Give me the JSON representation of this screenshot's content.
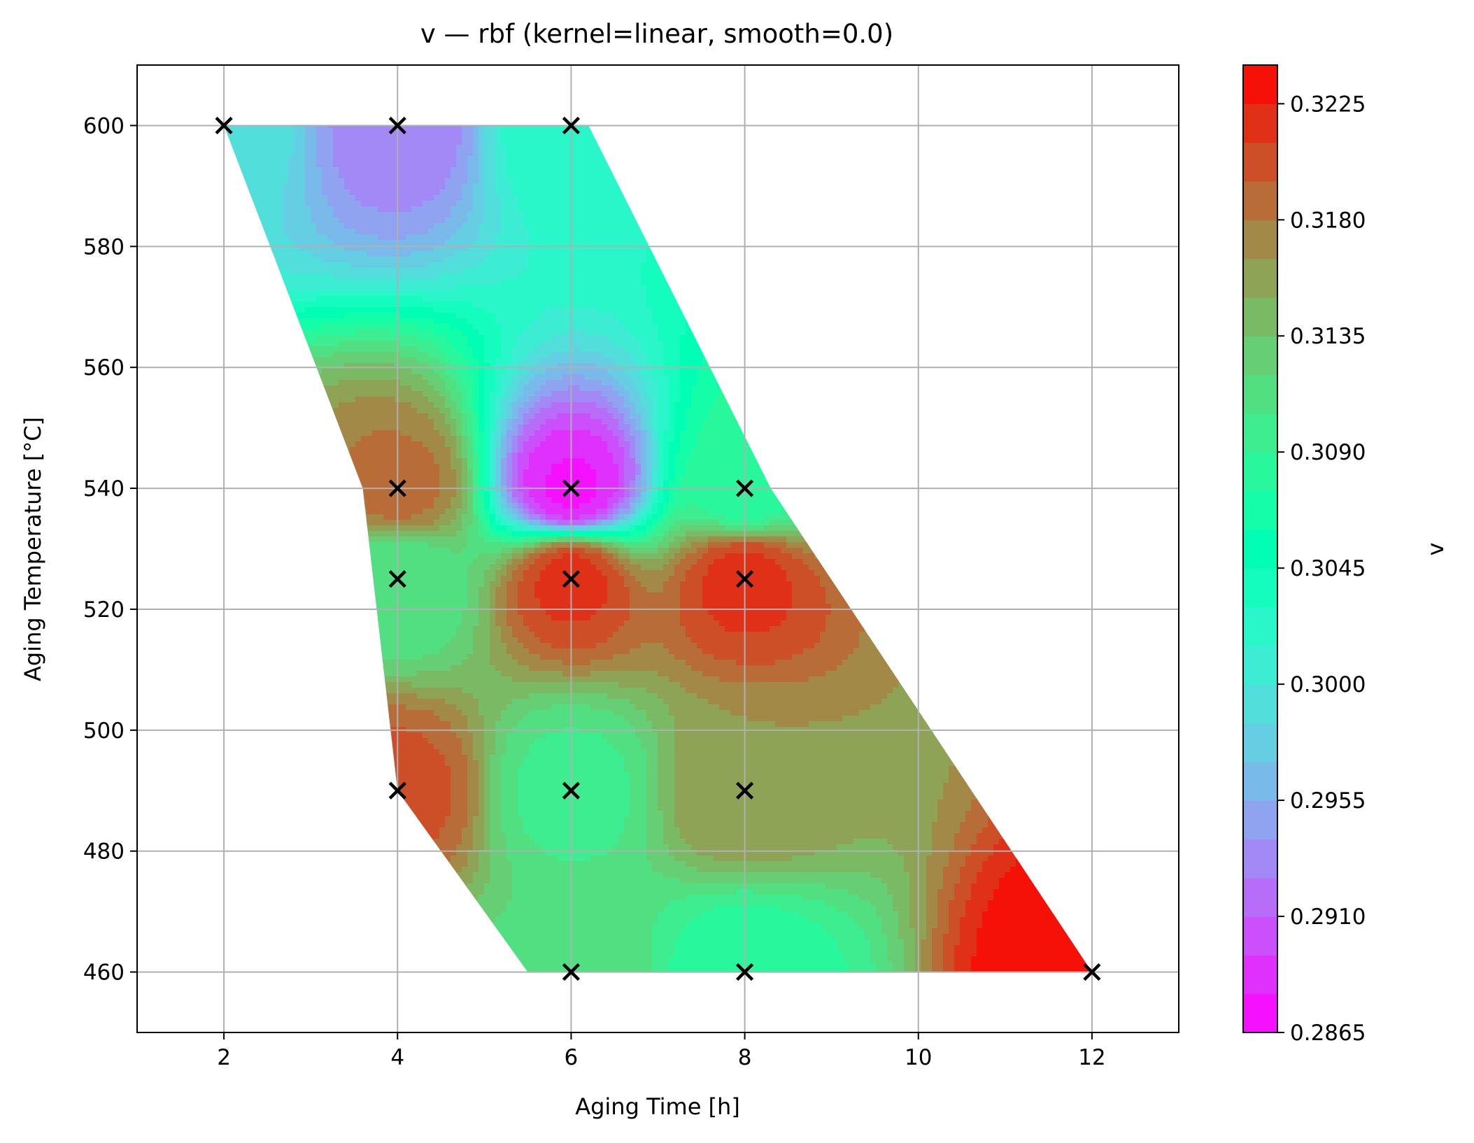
{
  "chart_data": {
    "type": "contour",
    "title": "v — rbf (kernel=linear, smooth=0.0)",
    "xlabel": "Aging Time [h]",
    "ylabel": "Aging Temperature [°C]",
    "xlim": [
      1,
      13
    ],
    "ylim": [
      450,
      610
    ],
    "xticks": [
      2,
      4,
      6,
      8,
      10,
      12
    ],
    "yticks": [
      460,
      480,
      500,
      520,
      540,
      560,
      580,
      600
    ],
    "grid": true,
    "colormap": "rainbow",
    "colorbar": {
      "label": "v",
      "min": 0.2865,
      "max": 0.324,
      "levels": 25,
      "ticks": [
        "0.2865",
        "0.2910",
        "0.2955",
        "0.3000",
        "0.3045",
        "0.3090",
        "0.3135",
        "0.3180",
        "0.3225"
      ]
    },
    "domain_polygon": [
      [
        2,
        600
      ],
      [
        6.2,
        600
      ],
      [
        8.3,
        540
      ],
      [
        12,
        460
      ],
      [
        5.5,
        460
      ],
      [
        4,
        490
      ],
      [
        3.6,
        540
      ]
    ],
    "points": [
      {
        "x": 2,
        "y": 600,
        "v": 0.2995
      },
      {
        "x": 4,
        "y": 600,
        "v": 0.293
      },
      {
        "x": 6,
        "y": 600,
        "v": 0.303
      },
      {
        "x": 4,
        "y": 540,
        "v": 0.3185
      },
      {
        "x": 6,
        "y": 540,
        "v": 0.2878
      },
      {
        "x": 8,
        "y": 540,
        "v": 0.308
      },
      {
        "x": 4,
        "y": 525,
        "v": 0.3105
      },
      {
        "x": 6,
        "y": 525,
        "v": 0.3215
      },
      {
        "x": 8,
        "y": 525,
        "v": 0.3215
      },
      {
        "x": 4,
        "y": 490,
        "v": 0.32
      },
      {
        "x": 6,
        "y": 490,
        "v": 0.31
      },
      {
        "x": 8,
        "y": 490,
        "v": 0.3165
      },
      {
        "x": 6,
        "y": 460,
        "v": 0.3115
      },
      {
        "x": 8,
        "y": 460,
        "v": 0.308
      },
      {
        "x": 12,
        "y": 460,
        "v": 0.324
      }
    ]
  }
}
